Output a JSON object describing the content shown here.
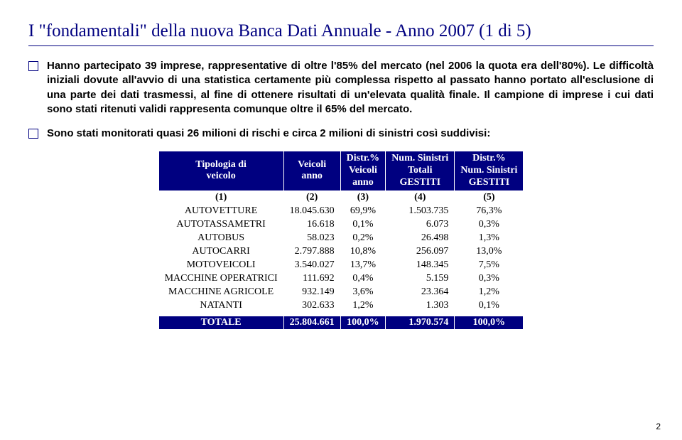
{
  "title": "I \"fondamentali\" della nuova Banca Dati Annuale - Anno 2007 (1 di 5)",
  "bullets": [
    "Hanno partecipato 39 imprese, rappresentative di oltre l'85% del mercato (nel 2006 la quota era dell'80%). Le difficoltà iniziali dovute all'avvio di una statistica certamente più complessa rispetto al passato hanno portato all'esclusione di una parte dei dati trasmessi, al fine di ottenere risultati di un'elevata qualità finale. Il campione di imprese i cui dati sono stati ritenuti validi rappresenta comunque oltre il 65% del mercato.",
    "Sono stati monitorati quasi 26 milioni di rischi e circa 2 milioni di sinistri così suddivisi:"
  ],
  "table": {
    "headers": [
      "Tipologia di\nveicolo",
      "Veicoli\nanno",
      "Distr.%\nVeicoli\nanno",
      "Num. Sinistri\nTotali\nGESTITI",
      "Distr.%\nNum. Sinistri\nGESTITI"
    ],
    "idxrow": [
      "(1)",
      "(2)",
      "(3)",
      "(4)",
      "(5)"
    ],
    "rows": [
      {
        "label": "AUTOVETTURE",
        "c2": "18.045.630",
        "c3": "69,9%",
        "c4": "1.503.735",
        "c5": "76,3%"
      },
      {
        "label": "AUTOTASSAMETRI",
        "c2": "16.618",
        "c3": "0,1%",
        "c4": "6.073",
        "c5": "0,3%"
      },
      {
        "label": "AUTOBUS",
        "c2": "58.023",
        "c3": "0,2%",
        "c4": "26.498",
        "c5": "1,3%"
      },
      {
        "label": "AUTOCARRI",
        "c2": "2.797.888",
        "c3": "10,8%",
        "c4": "256.097",
        "c5": "13,0%"
      },
      {
        "label": "MOTOVEICOLI",
        "c2": "3.540.027",
        "c3": "13,7%",
        "c4": "148.345",
        "c5": "7,5%"
      },
      {
        "label": "MACCHINE OPERATRICI",
        "c2": "111.692",
        "c3": "0,4%",
        "c4": "5.159",
        "c5": "0,3%"
      },
      {
        "label": "MACCHINE AGRICOLE",
        "c2": "932.149",
        "c3": "3,6%",
        "c4": "23.364",
        "c5": "1,2%"
      },
      {
        "label": "NATANTI",
        "c2": "302.633",
        "c3": "1,2%",
        "c4": "1.303",
        "c5": "0,1%"
      }
    ],
    "total": {
      "label": "TOTALE",
      "c2": "25.804.661",
      "c3": "100,0%",
      "c4": "1.970.574",
      "c5": "100,0%"
    }
  },
  "pagenum": "2"
}
